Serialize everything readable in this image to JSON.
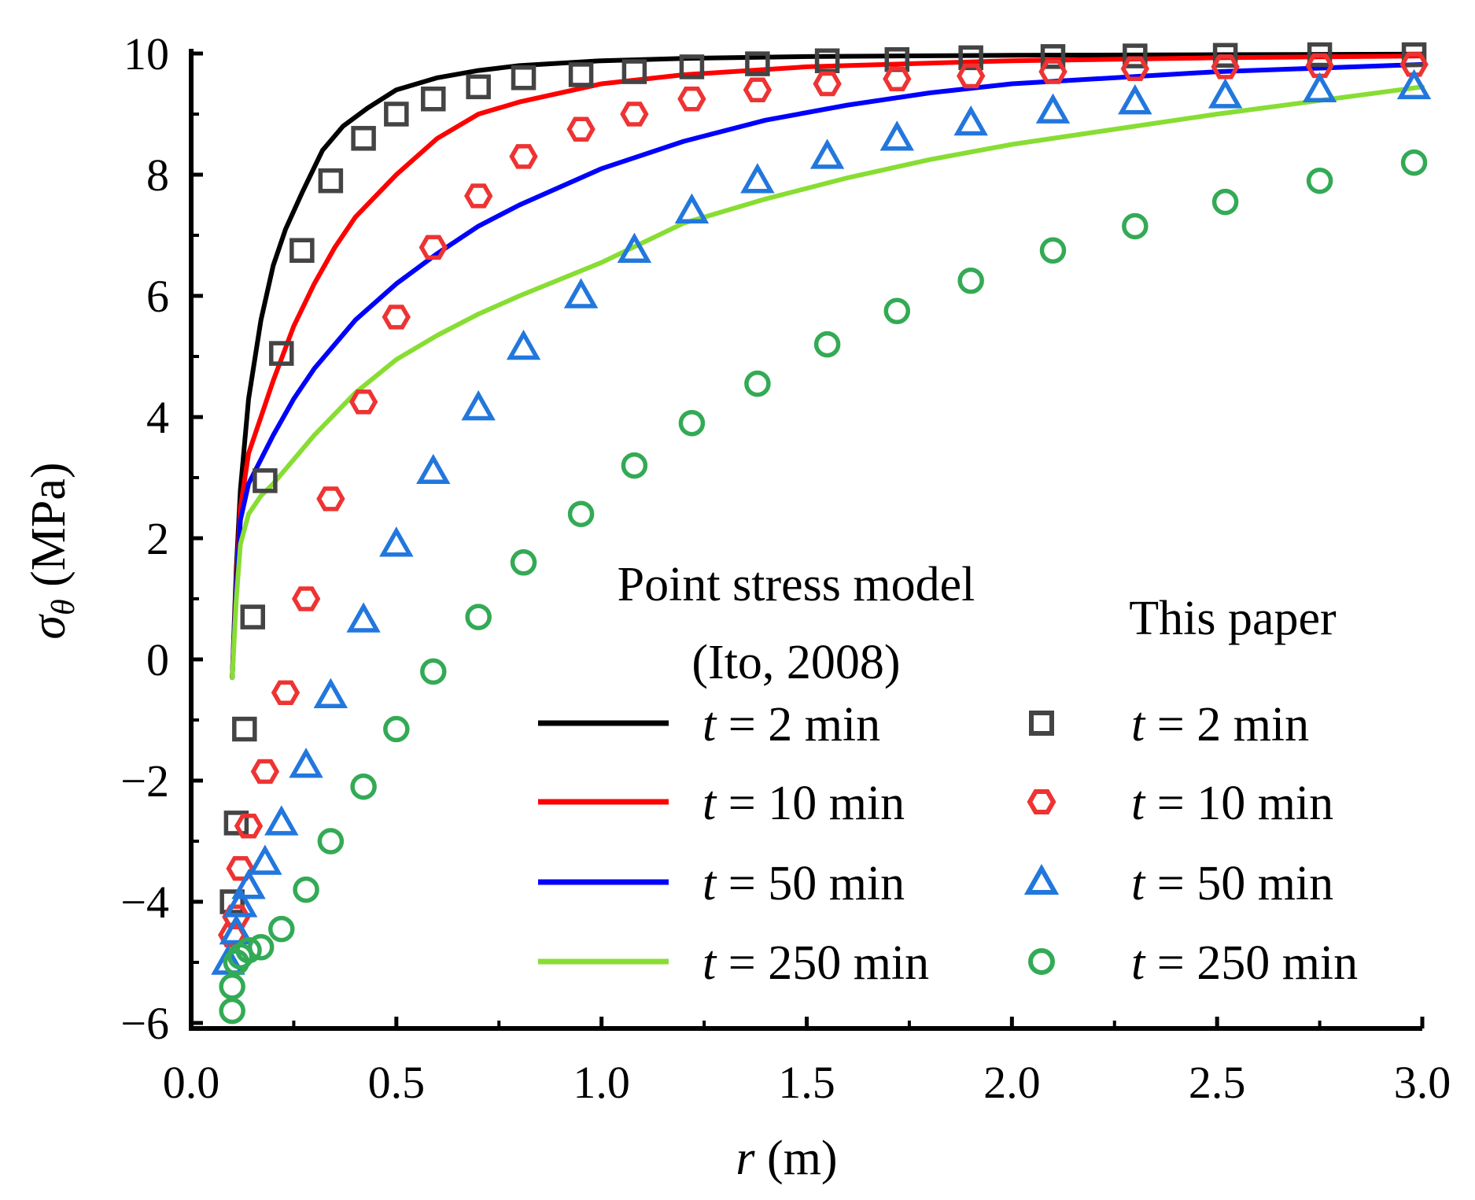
{
  "chart_data": {
    "type": "line",
    "xlabel": {
      "var": "r",
      "unit": " (m)"
    },
    "ylabel": {
      "var": "σ",
      "sub": "θ",
      "unit": " (MPa)"
    },
    "xlim": [
      0.0,
      3.0
    ],
    "ylim": [
      -6,
      10
    ],
    "x_ticks": [
      "0.0",
      "0.5",
      "1.0",
      "1.5",
      "2.0",
      "2.5",
      "3.0"
    ],
    "x_tick_values": [
      0.0,
      0.5,
      1.0,
      1.5,
      2.0,
      2.5,
      3.0
    ],
    "y_ticks": [
      "−6",
      "−4",
      "−2",
      "0",
      "2",
      "4",
      "6",
      "8",
      "10"
    ],
    "y_tick_values": [
      -6,
      -4,
      -2,
      0,
      2,
      4,
      6,
      8,
      10
    ],
    "legend": {
      "group1_title_line1": "Point stress model",
      "group1_title_line2": "(Ito, 2008)",
      "group2_title": "This paper",
      "entries": [
        {
          "var": "t",
          "text": " = 2 min"
        },
        {
          "var": "t",
          "text": " = 10 min"
        },
        {
          "var": "t",
          "text": " = 50 min"
        },
        {
          "var": "t",
          "text": " = 250 min"
        }
      ]
    },
    "series_lines": [
      {
        "name": "Point stress model t = 2 min",
        "color": "#000000",
        "x": [
          0.1,
          0.11,
          0.12,
          0.14,
          0.17,
          0.2,
          0.23,
          0.27,
          0.32,
          0.37,
          0.43,
          0.5,
          0.6,
          0.7,
          0.8,
          1.0,
          1.2,
          1.5,
          2.0,
          2.5,
          3.0
        ],
        "y": [
          -0.3,
          1.5,
          2.8,
          4.3,
          5.6,
          6.5,
          7.1,
          7.7,
          8.4,
          8.8,
          9.1,
          9.4,
          9.6,
          9.72,
          9.8,
          9.88,
          9.92,
          9.95,
          9.97,
          9.98,
          9.99
        ]
      },
      {
        "name": "Point stress model t = 10 min",
        "color": "#ff0000",
        "x": [
          0.1,
          0.11,
          0.12,
          0.14,
          0.17,
          0.2,
          0.25,
          0.3,
          0.35,
          0.4,
          0.5,
          0.6,
          0.7,
          0.8,
          1.0,
          1.2,
          1.5,
          2.0,
          2.5,
          3.0
        ],
        "y": [
          -0.3,
          1.3,
          2.5,
          3.4,
          4.0,
          4.6,
          5.5,
          6.2,
          6.8,
          7.3,
          8.0,
          8.6,
          9.0,
          9.2,
          9.5,
          9.65,
          9.78,
          9.88,
          9.93,
          9.96
        ]
      },
      {
        "name": "Point stress model t = 50 min",
        "color": "#0000ff",
        "x": [
          0.1,
          0.11,
          0.12,
          0.14,
          0.17,
          0.2,
          0.25,
          0.3,
          0.4,
          0.5,
          0.6,
          0.7,
          0.8,
          1.0,
          1.2,
          1.4,
          1.6,
          1.8,
          2.0,
          2.5,
          3.0
        ],
        "y": [
          -0.3,
          1.2,
          2.3,
          2.9,
          3.3,
          3.7,
          4.3,
          4.8,
          5.6,
          6.2,
          6.7,
          7.15,
          7.5,
          8.1,
          8.55,
          8.9,
          9.15,
          9.35,
          9.5,
          9.7,
          9.82
        ]
      },
      {
        "name": "Point stress model t = 250 min",
        "color": "#88dd33",
        "x": [
          0.1,
          0.11,
          0.12,
          0.14,
          0.17,
          0.2,
          0.25,
          0.3,
          0.4,
          0.5,
          0.6,
          0.7,
          0.8,
          1.0,
          1.2,
          1.4,
          1.6,
          1.8,
          2.0,
          2.2,
          2.5,
          3.0
        ],
        "y": [
          -0.3,
          1.0,
          1.9,
          2.4,
          2.7,
          2.9,
          3.3,
          3.7,
          4.4,
          4.95,
          5.35,
          5.7,
          6.0,
          6.55,
          7.2,
          7.6,
          7.95,
          8.25,
          8.5,
          8.7,
          9.0,
          9.45
        ]
      }
    ],
    "series_markers": [
      {
        "name": "This paper t = 2 min",
        "marker": "square",
        "color": "#444444",
        "x": [
          0.1,
          0.11,
          0.13,
          0.15,
          0.18,
          0.22,
          0.27,
          0.34,
          0.42,
          0.5,
          0.59,
          0.7,
          0.81,
          0.95,
          1.08,
          1.22,
          1.38,
          1.55,
          1.72,
          1.9,
          2.1,
          2.3,
          2.52,
          2.75,
          2.98
        ],
        "y": [
          -4.0,
          -2.7,
          -1.15,
          0.7,
          2.95,
          5.05,
          6.75,
          7.9,
          8.6,
          9.0,
          9.25,
          9.45,
          9.6,
          9.65,
          9.7,
          9.78,
          9.83,
          9.88,
          9.9,
          9.93,
          9.95,
          9.96,
          9.97,
          9.98,
          9.98
        ]
      },
      {
        "name": "This paper t = 10 min",
        "marker": "hexagon",
        "color": "#ee3333",
        "x": [
          0.1,
          0.11,
          0.12,
          0.14,
          0.18,
          0.23,
          0.28,
          0.34,
          0.42,
          0.5,
          0.59,
          0.7,
          0.81,
          0.95,
          1.08,
          1.22,
          1.38,
          1.55,
          1.72,
          1.9,
          2.1,
          2.3,
          2.52,
          2.75,
          2.98
        ],
        "y": [
          -4.55,
          -4.25,
          -3.45,
          -2.75,
          -1.85,
          -0.55,
          1.0,
          2.65,
          4.25,
          5.65,
          6.8,
          7.65,
          8.3,
          8.75,
          9.0,
          9.25,
          9.4,
          9.5,
          9.58,
          9.63,
          9.7,
          9.75,
          9.78,
          9.8,
          9.82
        ]
      },
      {
        "name": "This paper t = 50 min",
        "marker": "triangle",
        "color": "#2277dd",
        "x": [
          0.09,
          0.11,
          0.12,
          0.14,
          0.18,
          0.22,
          0.28,
          0.34,
          0.42,
          0.5,
          0.59,
          0.7,
          0.81,
          0.95,
          1.08,
          1.22,
          1.38,
          1.55,
          1.72,
          1.9,
          2.1,
          2.3,
          2.52,
          2.75,
          2.98
        ],
        "y": [
          -5.0,
          -4.5,
          -4.05,
          -3.75,
          -3.35,
          -2.7,
          -1.75,
          -0.6,
          0.65,
          1.9,
          3.1,
          4.15,
          5.15,
          6.0,
          6.75,
          7.4,
          7.9,
          8.3,
          8.6,
          8.85,
          9.05,
          9.2,
          9.3,
          9.4,
          9.45
        ]
      },
      {
        "name": "This paper t = 250 min",
        "marker": "circle",
        "color": "#33aa55",
        "x": [
          0.1,
          0.1,
          0.11,
          0.12,
          0.14,
          0.17,
          0.22,
          0.28,
          0.34,
          0.42,
          0.5,
          0.59,
          0.7,
          0.81,
          0.95,
          1.08,
          1.22,
          1.38,
          1.55,
          1.72,
          1.9,
          2.1,
          2.3,
          2.52,
          2.75,
          2.98
        ],
        "y": [
          -5.8,
          -5.4,
          -5.0,
          -4.9,
          -4.8,
          -4.75,
          -4.45,
          -3.8,
          -3.0,
          -2.1,
          -1.15,
          -0.2,
          0.7,
          1.6,
          2.4,
          3.2,
          3.9,
          4.55,
          5.2,
          5.75,
          6.25,
          6.75,
          7.15,
          7.55,
          7.9,
          8.2
        ]
      }
    ]
  }
}
